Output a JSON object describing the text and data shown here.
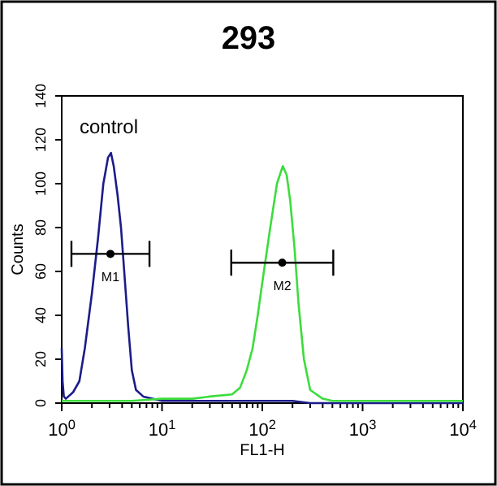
{
  "chart_data": {
    "type": "line",
    "title": "293",
    "xlabel": "FL1-H",
    "ylabel": "Counts",
    "log": "x",
    "xlim": [
      1,
      10000
    ],
    "ylim": [
      0,
      140
    ],
    "xticks": [
      {
        "value": 1,
        "label": "10$^{0}$"
      },
      {
        "value": 2,
        "label": null
      },
      {
        "value": 3,
        "label": null
      },
      {
        "value": 4,
        "label": null
      },
      {
        "value": 5,
        "label": null
      },
      {
        "value": 6,
        "label": null
      },
      {
        "value": 7,
        "label": null
      },
      {
        "value": 8,
        "label": null
      },
      {
        "value": 9,
        "label": null
      },
      {
        "value": 10,
        "label": "10$^{1}$"
      },
      {
        "value": 20,
        "label": null
      },
      {
        "value": 30,
        "label": null
      },
      {
        "value": 40,
        "label": null
      },
      {
        "value": 50,
        "label": null
      },
      {
        "value": 60,
        "label": null
      },
      {
        "value": 70,
        "label": null
      },
      {
        "value": 80,
        "label": null
      },
      {
        "value": 90,
        "label": null
      },
      {
        "value": 100,
        "label": "10$^{2}$"
      },
      {
        "value": 200,
        "label": null
      },
      {
        "value": 300,
        "label": null
      },
      {
        "value": 400,
        "label": null
      },
      {
        "value": 500,
        "label": null
      },
      {
        "value": 600,
        "label": null
      },
      {
        "value": 700,
        "label": null
      },
      {
        "value": 800,
        "label": null
      },
      {
        "value": 900,
        "label": null
      },
      {
        "value": 1000,
        "label": "10$^{3}$"
      },
      {
        "value": 2000,
        "label": null
      },
      {
        "value": 3000,
        "label": null
      },
      {
        "value": 4000,
        "label": null
      },
      {
        "value": 5000,
        "label": null
      },
      {
        "value": 6000,
        "label": null
      },
      {
        "value": 7000,
        "label": null
      },
      {
        "value": 8000,
        "label": null
      },
      {
        "value": 9000,
        "label": null
      },
      {
        "value": 10000,
        "label": "10$^{4}$"
      }
    ],
    "yticks": [
      0,
      20,
      40,
      60,
      80,
      100,
      120,
      140
    ],
    "grid": false,
    "legend": false,
    "marker": "none",
    "line_style": "solid",
    "series": [
      {
        "color": "#1c1c8a",
        "x": [
          1,
          1.02,
          1.05,
          1.1,
          1.3,
          1.5,
          1.7,
          2,
          2.3,
          2.6,
          2.9,
          3.1,
          3.3,
          3.6,
          3.9,
          4.2,
          4.6,
          5,
          5.5,
          6.5,
          8,
          10,
          20,
          50,
          100,
          200,
          300,
          1000,
          10000
        ],
        "values": [
          25,
          10,
          3,
          2,
          5,
          10,
          25,
          50,
          75,
          100,
          112,
          114,
          108,
          95,
          80,
          60,
          35,
          15,
          6,
          3,
          2,
          1,
          1,
          1,
          1,
          1,
          0,
          0,
          0
        ]
      },
      {
        "color": "#3ddc3d",
        "x": [
          1,
          5,
          10,
          20,
          30,
          50,
          60,
          70,
          80,
          90,
          100,
          120,
          140,
          160,
          175,
          190,
          210,
          230,
          260,
          300,
          400,
          500,
          1000,
          3000,
          10000
        ],
        "values": [
          1,
          1,
          2,
          2,
          3,
          4,
          7,
          15,
          25,
          40,
          55,
          80,
          100,
          108,
          104,
          92,
          70,
          45,
          20,
          6,
          2,
          1,
          1,
          1,
          1
        ]
      },
      {
        "type": "scatter",
        "name": "M1",
        "color": "#000000",
        "marker": "circle",
        "x": [
          3.06
        ],
        "values": [
          68
        ],
        "xerrors": [
          [
            1.25,
            7.5
          ]
        ]
      },
      {
        "type": "scatter",
        "name": "M2",
        "color": "#000000",
        "marker": "circle",
        "x": [
          158
        ],
        "values": [
          64
        ],
        "xerrors": [
          [
            49,
            510
          ]
        ]
      }
    ],
    "annotations": [
      "control"
    ]
  }
}
